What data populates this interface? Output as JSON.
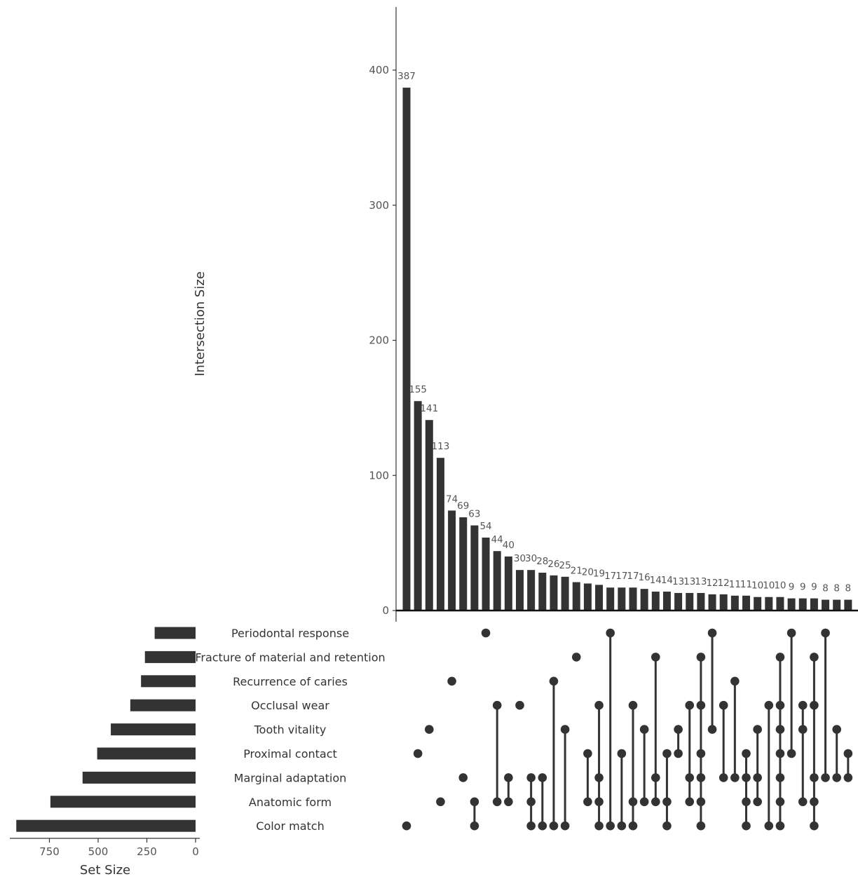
{
  "chart_data": {
    "type": "upset",
    "ylabel": "Intersection Size",
    "set_size_xlabel": "Set Size",
    "y_ticks": [
      0,
      100,
      200,
      300,
      400
    ],
    "ylim": [
      0,
      440
    ],
    "set_size_ticks": [
      750,
      500,
      250,
      0
    ],
    "set_size_xlim": [
      0,
      920
    ],
    "sets": [
      {
        "name": "Periodontal response",
        "size": 210
      },
      {
        "name": "Fracture of material and retention",
        "size": 260
      },
      {
        "name": "Recurrence of caries",
        "size": 280
      },
      {
        "name": "Occlusal wear",
        "size": 335
      },
      {
        "name": "Tooth vitality",
        "size": 435
      },
      {
        "name": "Proximal contact",
        "size": 505
      },
      {
        "name": "Marginal adaptation",
        "size": 580
      },
      {
        "name": "Anatomic form",
        "size": 745
      },
      {
        "name": "Color match",
        "size": 920
      }
    ],
    "intersections": [
      {
        "value": 387,
        "label": "387",
        "sets": [
          8
        ]
      },
      {
        "value": 155,
        "label": "155",
        "sets": [
          5
        ]
      },
      {
        "value": 141,
        "label": "141",
        "sets": [
          4
        ]
      },
      {
        "value": 113,
        "label": "113",
        "sets": [
          7
        ]
      },
      {
        "value": 74,
        "label": "74",
        "sets": [
          2
        ]
      },
      {
        "value": 69,
        "label": "69",
        "sets": [
          6
        ]
      },
      {
        "value": 63,
        "label": "63",
        "sets": [
          7,
          8
        ]
      },
      {
        "value": 54,
        "label": "54",
        "sets": [
          0
        ]
      },
      {
        "value": 44,
        "label": "44",
        "sets": [
          3,
          7
        ]
      },
      {
        "value": 40,
        "label": "40",
        "sets": [
          6,
          7
        ]
      },
      {
        "value": 30,
        "label": "30",
        "sets": [
          3
        ]
      },
      {
        "value": 30,
        "label": "30",
        "sets": [
          6,
          7,
          8
        ]
      },
      {
        "value": 28,
        "label": "28",
        "sets": [
          6,
          8
        ]
      },
      {
        "value": 26,
        "label": "26",
        "sets": [
          2,
          8
        ]
      },
      {
        "value": 25,
        "label": "25",
        "sets": [
          4,
          8
        ]
      },
      {
        "value": 21,
        "label": "21",
        "sets": [
          1
        ]
      },
      {
        "value": 20,
        "label": "20",
        "sets": [
          5,
          7
        ]
      },
      {
        "value": 19,
        "label": "19",
        "sets": [
          3,
          6,
          7,
          8
        ]
      },
      {
        "value": 17,
        "label": "17",
        "sets": [
          0,
          8
        ]
      },
      {
        "value": 17,
        "label": "17",
        "sets": [
          5,
          8
        ]
      },
      {
        "value": 17,
        "label": "17",
        "sets": [
          3,
          7,
          8
        ]
      },
      {
        "value": 16,
        "label": "16",
        "sets": [
          4,
          7
        ]
      },
      {
        "value": 14,
        "label": "14",
        "sets": [
          1,
          6,
          7
        ]
      },
      {
        "value": 14,
        "label": "14",
        "sets": [
          5,
          7,
          8
        ]
      },
      {
        "value": 13,
        "label": "13",
        "sets": [
          4,
          5
        ]
      },
      {
        "value": 13,
        "label": "13",
        "sets": [
          3,
          6,
          7
        ]
      },
      {
        "value": 13,
        "label": "13",
        "sets": [
          1,
          3,
          5,
          6,
          7,
          8
        ]
      },
      {
        "value": 12,
        "label": "12",
        "sets": [
          0,
          4
        ]
      },
      {
        "value": 12,
        "label": "12",
        "sets": [
          3,
          6
        ]
      },
      {
        "value": 11,
        "label": "11",
        "sets": [
          2,
          6
        ]
      },
      {
        "value": 11,
        "label": "11",
        "sets": [
          5,
          6,
          7,
          8
        ]
      },
      {
        "value": 10,
        "label": "10",
        "sets": [
          4,
          6,
          7
        ]
      },
      {
        "value": 10,
        "label": "10",
        "sets": [
          3,
          8
        ]
      },
      {
        "value": 10,
        "label": "10",
        "sets": [
          1,
          3,
          4,
          5,
          6,
          7,
          8
        ]
      },
      {
        "value": 9,
        "label": "9",
        "sets": [
          0,
          5
        ]
      },
      {
        "value": 9,
        "label": "9",
        "sets": [
          3,
          4,
          7
        ]
      },
      {
        "value": 9,
        "label": "9",
        "sets": [
          1,
          3,
          6,
          7,
          8
        ]
      },
      {
        "value": 8,
        "label": "8",
        "sets": [
          0,
          6
        ]
      },
      {
        "value": 8,
        "label": "8",
        "sets": [
          4,
          6
        ]
      },
      {
        "value": 8,
        "label": "8",
        "sets": [
          5,
          6
        ]
      }
    ]
  }
}
